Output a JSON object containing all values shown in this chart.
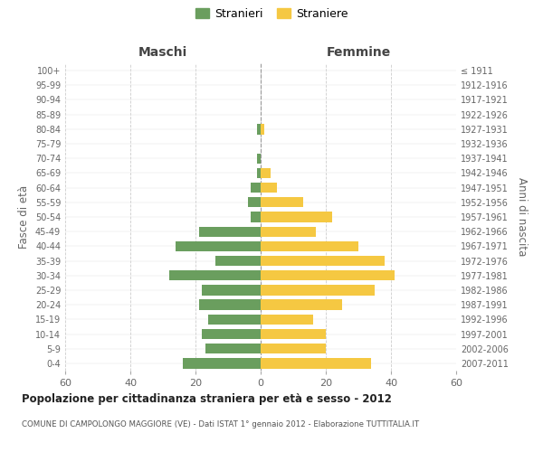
{
  "age_groups_bottom_to_top": [
    "0-4",
    "5-9",
    "10-14",
    "15-19",
    "20-24",
    "25-29",
    "30-34",
    "35-39",
    "40-44",
    "45-49",
    "50-54",
    "55-59",
    "60-64",
    "65-69",
    "70-74",
    "75-79",
    "80-84",
    "85-89",
    "90-94",
    "95-99",
    "100+"
  ],
  "birth_years_bottom_to_top": [
    "2007-2011",
    "2002-2006",
    "1997-2001",
    "1992-1996",
    "1987-1991",
    "1982-1986",
    "1977-1981",
    "1972-1976",
    "1967-1971",
    "1962-1966",
    "1957-1961",
    "1952-1956",
    "1947-1951",
    "1942-1946",
    "1937-1941",
    "1932-1936",
    "1927-1931",
    "1922-1926",
    "1917-1921",
    "1912-1916",
    "≤ 1911"
  ],
  "males_bottom_to_top": [
    24,
    17,
    18,
    16,
    19,
    18,
    28,
    14,
    26,
    19,
    3,
    4,
    3,
    1,
    1,
    0,
    1,
    0,
    0,
    0,
    0
  ],
  "females_bottom_to_top": [
    34,
    20,
    20,
    16,
    25,
    35,
    41,
    38,
    30,
    17,
    22,
    13,
    5,
    3,
    0,
    0,
    1,
    0,
    0,
    0,
    0
  ],
  "male_color": "#6a9e5e",
  "female_color": "#f5c842",
  "background_color": "#ffffff",
  "grid_color": "#cccccc",
  "title": "Popolazione per cittadinanza straniera per età e sesso - 2012",
  "subtitle": "COMUNE DI CAMPOLONGO MAGGIORE (VE) - Dati ISTAT 1° gennaio 2012 - Elaborazione TUTTITALIA.IT",
  "xlabel_left": "Maschi",
  "xlabel_right": "Femmine",
  "ylabel_left": "Fasce di età",
  "ylabel_right": "Anni di nascita",
  "legend_male": "Stranieri",
  "legend_female": "Straniere",
  "xlim": 60,
  "tick_step": 20
}
